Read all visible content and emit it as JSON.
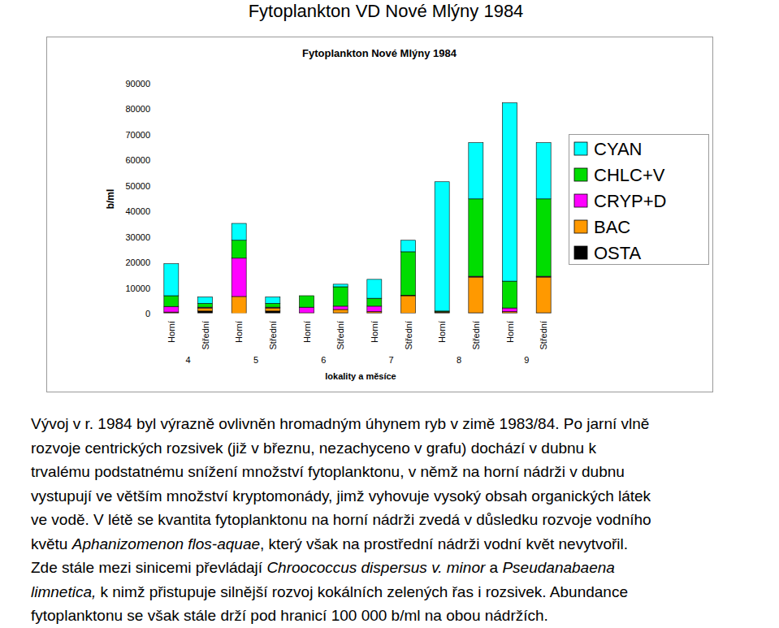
{
  "heading": "Fytoplankton VD Nové Mlýny 1984",
  "chart_data": {
    "type": "bar",
    "stacked": true,
    "grid": false,
    "legend": "right",
    "title": "Fytoplankton Nové Mlýny 1984",
    "y_label": "b/ml",
    "x_label": "lokality a měsíce",
    "categories": [
      "Horní",
      "Střední",
      "Horní",
      "Střední",
      "Horní",
      "Střední",
      "Horní",
      "Střední",
      "Horní",
      "Střední",
      "Horní",
      "Střední"
    ],
    "x_groups": [
      "4",
      "5",
      "6",
      "7",
      "8",
      "9"
    ],
    "ylim": [
      0,
      90000
    ],
    "yticks": [
      0,
      10000,
      20000,
      30000,
      40000,
      50000,
      60000,
      70000,
      80000,
      90000
    ],
    "series": [
      {
        "name": "OSTA",
        "color": "#000000",
        "values": [
          300,
          1000,
          0,
          1000,
          0,
          300,
          300,
          200,
          500,
          300,
          300,
          300
        ]
      },
      {
        "name": "BAC",
        "color": "#ff9900",
        "values": [
          300,
          1200,
          6700,
          1200,
          300,
          1300,
          500,
          6800,
          300,
          14000,
          500,
          14000
        ]
      },
      {
        "name": "CRYP+D",
        "color": "#ff00ff",
        "values": [
          2200,
          300,
          15000,
          300,
          2200,
          1300,
          2100,
          200,
          0,
          300,
          1400,
          300
        ]
      },
      {
        "name": "CHLC+V",
        "color": "#00dd00",
        "values": [
          4200,
          1500,
          7000,
          1500,
          4500,
          7600,
          3100,
          17000,
          200,
          30300,
          10500,
          30300
        ]
      },
      {
        "name": "CYAN",
        "color": "#00ffff",
        "values": [
          12500,
          2500,
          6600,
          2500,
          0,
          1000,
          7400,
          4500,
          50600,
          22000,
          69800,
          22000
        ]
      }
    ]
  },
  "paragraph": {
    "lines": [
      [
        {
          "text": "Vývoj v r. 1984 byl výrazně ovlivněn hromadným úhynem ryb v zimě 1983/84. Po jarní vlně",
          "italic": false
        }
      ],
      [
        {
          "text": "rozvoje centrických rozsivek (již v březnu, nezachyceno v grafu) dochází v dubnu k",
          "italic": false
        }
      ],
      [
        {
          "text": "trvalému podstatnému snížení množství fytoplanktonu, v němž na horní nádrži v dubnu",
          "italic": false
        }
      ],
      [
        {
          "text": "vystupují ve větším množství kryptomonády, jimž vyhovuje vysoký obsah organických látek",
          "italic": false
        }
      ],
      [
        {
          "text": "ve vodě. V létě se kvantita fytoplanktonu na horní nádrži zvedá v důsledku rozvoje vodního",
          "italic": false
        }
      ],
      [
        {
          "text": "květu ",
          "italic": false
        },
        {
          "text": "Aphanizomenon flos-aquae",
          "italic": true
        },
        {
          "text": ", který však na prostřední nádrži vodní květ nevytvořil.",
          "italic": false
        }
      ],
      [
        {
          "text": "Zde stále mezi sinicemi převládají ",
          "italic": false
        },
        {
          "text": "Chroococcus dispersus v. minor",
          "italic": true
        },
        {
          "text": " a ",
          "italic": false
        },
        {
          "text": "Pseudanabaena",
          "italic": true
        }
      ],
      [
        {
          "text": "limnetica,",
          "italic": true
        },
        {
          "text": " k nimž přistupuje silnější rozvoj kokálních zelených řas i rozsivek. Abundance",
          "italic": false
        }
      ],
      [
        {
          "text": "fytoplanktonu se však stále drží pod hranicí 100 000 b/ml na obou nádržích.",
          "italic": false
        }
      ]
    ]
  }
}
